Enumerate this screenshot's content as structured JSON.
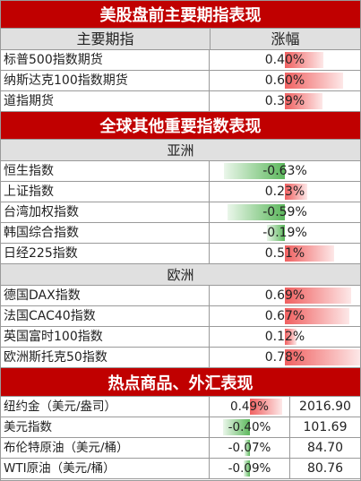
{
  "sections": {
    "us": {
      "title": "美股盘前主要期指表现",
      "col_name": "主要期指",
      "col_change": "涨幅",
      "rows": [
        {
          "name": "标普500指数期货",
          "change": "0.40%",
          "value": 0.4
        },
        {
          "name": "纳斯达克100指数期货",
          "change": "0.60%",
          "value": 0.6
        },
        {
          "name": "道指期货",
          "change": "0.39%",
          "value": 0.39
        }
      ]
    },
    "global": {
      "title": "全球其他重要指数表现",
      "asia_label": "亚洲",
      "asia": [
        {
          "name": "恒生指数",
          "change": "-0.63%",
          "value": -0.63
        },
        {
          "name": "上证指数",
          "change": "0.23%",
          "value": 0.23
        },
        {
          "name": "台湾加权指数",
          "change": "-0.59%",
          "value": -0.59
        },
        {
          "name": "韩国综合指数",
          "change": "-0.19%",
          "value": -0.19
        },
        {
          "name": "日经225指数",
          "change": "0.51%",
          "value": 0.51
        }
      ],
      "europe_label": "欧洲",
      "europe": [
        {
          "name": "德国DAX指数",
          "change": "0.69%",
          "value": 0.69
        },
        {
          "name": "法国CAC40指数",
          "change": "0.67%",
          "value": 0.67
        },
        {
          "name": "英国富时100指数",
          "change": "0.12%",
          "value": 0.12
        },
        {
          "name": "欧洲斯托克50指数",
          "change": "0.78%",
          "value": 0.78
        }
      ]
    },
    "commodities": {
      "title": "热点商品、外汇表现",
      "rows": [
        {
          "name": "纽约金（美元/盎司）",
          "change": "0.49%",
          "value": 0.49,
          "price": "2016.90"
        },
        {
          "name": "美元指数",
          "change": "-0.40%",
          "value": -0.4,
          "price": "101.69"
        },
        {
          "name": "布伦特原油（美元/桶）",
          "change": "-0.07%",
          "value": -0.07,
          "price": "84.70"
        },
        {
          "name": "WTI原油（美元/桶）",
          "change": "-0.09%",
          "value": -0.09,
          "price": "80.76"
        }
      ]
    }
  },
  "colors": {
    "banner": "#c00000",
    "positive": "#f06060",
    "negative": "#5cb85c"
  }
}
